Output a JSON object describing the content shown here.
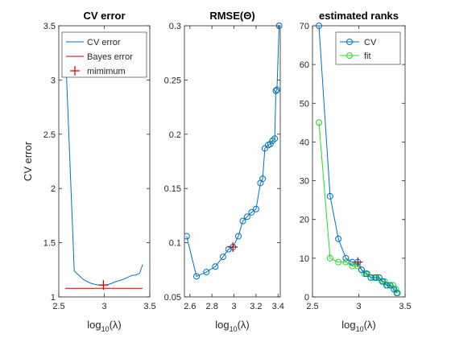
{
  "colors": {
    "cv": "#0072BD",
    "bayes": "#C00000",
    "fit": "#22DD22",
    "minimum": "#C00000"
  },
  "chart_data": [
    {
      "type": "line",
      "title": "CV error",
      "xlabel": "log",
      "xlabel_sub": "10",
      "xlabel_tail": "(λ)",
      "ylabel": "CV error",
      "xlim": [
        2.5,
        3.5
      ],
      "ylim": [
        1,
        3.5
      ],
      "xticks": [
        "2.5",
        "3",
        "3.5"
      ],
      "xtick_values": [
        2.5,
        3,
        3.5
      ],
      "yticks": [
        "1",
        "1.5",
        "2",
        "2.5",
        "3",
        "3.5"
      ],
      "ytick_values": [
        1,
        1.5,
        2,
        2.5,
        3,
        3.5
      ],
      "legend_position": "top",
      "series": [
        {
          "name": "CV error",
          "x": [
            2.57,
            2.67,
            2.77,
            2.84,
            2.9,
            2.95,
            3.0,
            3.04,
            3.08,
            3.12,
            3.16,
            3.2,
            3.24,
            3.28,
            3.31,
            3.34,
            3.37,
            3.39,
            3.41,
            3.42
          ],
          "y": [
            3.35,
            1.24,
            1.16,
            1.13,
            1.115,
            1.11,
            1.11,
            1.115,
            1.125,
            1.14,
            1.15,
            1.16,
            1.175,
            1.19,
            1.2,
            1.2,
            1.21,
            1.22,
            1.27,
            1.3
          ]
        },
        {
          "name": "Bayes error",
          "x": [
            2.57,
            3.42
          ],
          "y": [
            1.08,
            1.08
          ]
        }
      ],
      "minimum": {
        "name": "mimimum",
        "x": 2.99,
        "y": 1.11
      }
    },
    {
      "type": "line",
      "title": "RMSE(Θ)",
      "xlabel": "log",
      "xlabel_sub": "10",
      "xlabel_tail": "(λ)",
      "xlim": [
        2.55,
        3.42
      ],
      "ylim": [
        0.05,
        0.3
      ],
      "xticks": [
        "2.6",
        "2.8",
        "3",
        "3.2",
        "3.4"
      ],
      "xtick_values": [
        2.6,
        2.8,
        3.0,
        3.2,
        3.4
      ],
      "yticks": [
        "0.05",
        "0.1",
        "0.15",
        "0.2",
        "0.25",
        "0.3"
      ],
      "ytick_values": [
        0.05,
        0.1,
        0.15,
        0.2,
        0.25,
        0.3
      ],
      "series": [
        {
          "name": "",
          "x": [
            2.57,
            2.66,
            2.75,
            2.83,
            2.9,
            2.95,
            2.99,
            3.04,
            3.08,
            3.12,
            3.16,
            3.2,
            3.24,
            3.26,
            3.28,
            3.31,
            3.33,
            3.35,
            3.37,
            3.38,
            3.39,
            3.41
          ],
          "y": [
            0.106,
            0.069,
            0.073,
            0.078,
            0.087,
            0.094,
            0.096,
            0.106,
            0.12,
            0.124,
            0.128,
            0.131,
            0.155,
            0.159,
            0.187,
            0.19,
            0.191,
            0.194,
            0.196,
            0.24,
            0.241,
            0.3
          ]
        }
      ],
      "minimum": {
        "x": 2.99,
        "y": 0.096
      }
    },
    {
      "type": "line",
      "title": "estimated ranks",
      "xlabel": "log",
      "xlabel_sub": "10",
      "xlabel_tail": "(λ)",
      "xlim": [
        2.5,
        3.5
      ],
      "ylim": [
        0,
        70
      ],
      "xticks": [
        "2.5",
        "3",
        "3.5"
      ],
      "xtick_values": [
        2.5,
        3,
        3.5
      ],
      "yticks": [
        "0",
        "10",
        "20",
        "30",
        "40",
        "50",
        "60",
        "70"
      ],
      "ytick_values": [
        0,
        10,
        20,
        30,
        40,
        50,
        60,
        70
      ],
      "legend_position": "top-right",
      "series": [
        {
          "name": "CV",
          "x": [
            2.57,
            2.69,
            2.78,
            2.86,
            2.93,
            2.99,
            3.03,
            3.08,
            3.13,
            3.18,
            3.22,
            3.26,
            3.3,
            3.34,
            3.38,
            3.41
          ],
          "y": [
            70,
            26,
            15,
            10,
            9,
            9,
            7,
            6,
            5,
            5,
            5,
            4,
            3,
            3,
            2,
            1
          ]
        },
        {
          "name": "fit",
          "x": [
            2.57,
            2.69,
            2.78,
            2.86,
            2.93,
            2.99,
            3.03,
            3.06,
            3.09,
            3.13,
            3.16,
            3.19,
            3.22,
            3.25,
            3.28,
            3.31,
            3.34,
            3.37,
            3.4,
            3.42
          ],
          "y": [
            45,
            10,
            9,
            9,
            8,
            8,
            7,
            6,
            6,
            5,
            5,
            5,
            5,
            4,
            4,
            3,
            3,
            3,
            2,
            1
          ]
        }
      ],
      "minimum": {
        "x": 2.99,
        "y": 9
      }
    }
  ]
}
